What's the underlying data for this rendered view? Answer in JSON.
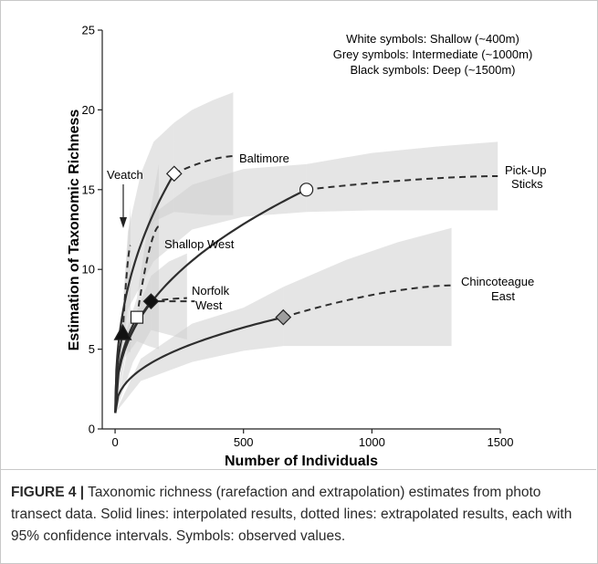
{
  "chart_data": {
    "type": "line",
    "xlabel": "Number of Individuals",
    "ylabel": "Estimation of Taxonomic Richness",
    "xlim": [
      -50,
      1500
    ],
    "ylim": [
      0,
      25
    ],
    "xticks": [
      0,
      500,
      1000,
      1500
    ],
    "yticks": [
      0,
      5,
      10,
      15,
      20,
      25
    ],
    "grid": false,
    "legend_lines": [
      "White symbols:  Shallow (~400m)",
      "Grey symbols:  Intermediate (~1000m)",
      "Black symbols:  Deep (~1500m)"
    ],
    "colors": {
      "ci_band": "#d0d0d0",
      "line": "#2e2e2e",
      "white": "#ffffff",
      "grey": "#9e9e9e",
      "black": "#111111"
    },
    "series": [
      {
        "name": "Baltimore",
        "depth": "Shallow (~400m)",
        "marker": "diamond",
        "fill": "white",
        "observed": {
          "x": 230,
          "y": 16
        },
        "extrap_end": {
          "x": 460,
          "y": 17.1
        },
        "ci_interp": [
          [
            1,
            1,
            1
          ],
          [
            50,
            9.2,
            12.4
          ],
          [
            100,
            11.8,
            16.0
          ],
          [
            150,
            13.0,
            18.0
          ],
          [
            230,
            13.6,
            19.2
          ]
        ],
        "ci_extrap": [
          [
            230,
            13.6,
            19.2
          ],
          [
            300,
            13.5,
            20.0
          ],
          [
            380,
            13.4,
            20.6
          ],
          [
            460,
            13.4,
            21.1
          ]
        ]
      },
      {
        "name": "Pick-Up Sticks",
        "depth": "Shallow (~400m)",
        "marker": "circle",
        "fill": "white",
        "observed": {
          "x": 745,
          "y": 15
        },
        "extrap_end": {
          "x": 1490,
          "y": 15.85
        },
        "ci_interp": [
          [
            1,
            1,
            1
          ],
          [
            50,
            7.5,
            9.4
          ],
          [
            150,
            10.5,
            13.5
          ],
          [
            300,
            12.5,
            15.3
          ],
          [
            500,
            13.3,
            16.3
          ],
          [
            745,
            13.6,
            16.6
          ]
        ],
        "ci_extrap": [
          [
            745,
            13.6,
            16.6
          ],
          [
            1000,
            13.7,
            17.3
          ],
          [
            1250,
            13.7,
            17.7
          ],
          [
            1490,
            13.7,
            18.0
          ]
        ]
      },
      {
        "name": "Shallop West",
        "depth": "Shallow (~400m)",
        "marker": "square",
        "fill": "white",
        "observed": {
          "x": 85,
          "y": 7
        },
        "extrap_end": {
          "x": 170,
          "y": 12.7
        },
        "ci_interp": [
          [
            1,
            1,
            1
          ],
          [
            40,
            4.5,
            6.0
          ],
          [
            85,
            5.5,
            8.2
          ]
        ],
        "ci_extrap": [
          [
            85,
            5.5,
            8.2
          ],
          [
            130,
            5.2,
            13.0
          ],
          [
            170,
            5.0,
            16.6
          ]
        ]
      },
      {
        "name": "Norfolk West",
        "depth": "Deep (~1500m)",
        "marker": "diamond",
        "fill": "black",
        "observed": {
          "x": 140,
          "y": 8
        },
        "extrap_end": {
          "x": 280,
          "y": 8.2
        },
        "ci_interp": [
          [
            1,
            1,
            1
          ],
          [
            70,
            4.2,
            6.8
          ],
          [
            140,
            6.2,
            9.6
          ]
        ],
        "ci_extrap": [
          [
            140,
            6.2,
            9.6
          ],
          [
            210,
            5.9,
            10.5
          ],
          [
            280,
            5.6,
            11.0
          ]
        ]
      },
      {
        "name": "Veatch",
        "depth": "Deep (~1500m)",
        "marker": "triangle",
        "fill": "black",
        "observed": {
          "x": 30,
          "y": 6
        },
        "extrap_end": {
          "x": 60,
          "y": 11.5
        },
        "ci_interp": [
          [
            1,
            1,
            1
          ],
          [
            30,
            5.0,
            7.2
          ]
        ],
        "ci_extrap": [
          [
            30,
            5.0,
            7.2
          ],
          [
            60,
            4.8,
            14.0
          ]
        ]
      },
      {
        "name": "Chincoteague East",
        "depth": "Intermediate (~1000m)",
        "marker": "diamond",
        "fill": "grey",
        "observed": {
          "x": 655,
          "y": 7
        },
        "extrap_end": {
          "x": 1310,
          "y": 9.0
        },
        "ci_interp": [
          [
            1,
            1,
            1
          ],
          [
            100,
            3.0,
            4.4
          ],
          [
            300,
            4.2,
            6.6
          ],
          [
            500,
            4.9,
            7.6
          ],
          [
            655,
            5.2,
            8.9
          ]
        ],
        "ci_extrap": [
          [
            655,
            5.2,
            8.9
          ],
          [
            900,
            5.2,
            10.6
          ],
          [
            1100,
            5.2,
            11.7
          ],
          [
            1310,
            5.2,
            12.6
          ]
        ]
      }
    ],
    "labels": {
      "baltimore": "Baltimore",
      "veatch": "Veatch",
      "pickup_1": "Pick-Up",
      "pickup_2": "Sticks",
      "shallop": "Shallop West",
      "norfolk_1": "Norfolk",
      "norfolk_2": "West",
      "chinco_1": "Chincoteague",
      "chinco_2": "East"
    }
  },
  "caption": {
    "label": "FIGURE 4 |",
    "text": "Taxonomic richness (rarefaction and extrapolation) estimates from photo transect data. Solid lines: interpolated results, dotted lines: extrapolated results, each with 95% confidence intervals. Symbols: observed values."
  }
}
